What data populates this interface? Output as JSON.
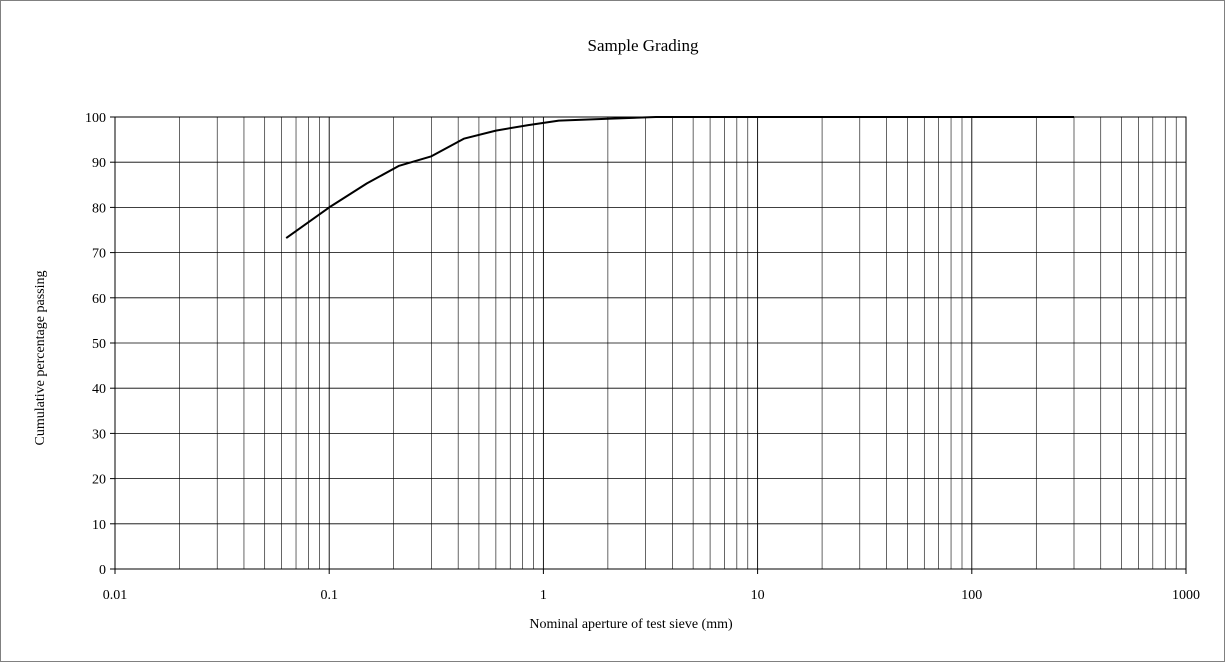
{
  "chart_data": {
    "type": "line",
    "title": "Sample Grading",
    "xlabel": "Nominal aperture of test sieve (mm)",
    "ylabel": "Cumulative percentage passing",
    "xscale": "log",
    "xlim": [
      0.01,
      1000
    ],
    "ylim": [
      0,
      100
    ],
    "x_ticks": [
      "0.01",
      "0.1",
      "1",
      "10",
      "100",
      "1000"
    ],
    "y_ticks": [
      "0",
      "10",
      "20",
      "30",
      "40",
      "50",
      "60",
      "70",
      "80",
      "90",
      "100"
    ],
    "grid": true,
    "legend": "none",
    "series": [
      {
        "x": [
          0.063,
          0.1,
          0.15,
          0.212,
          0.3,
          0.425,
          0.6,
          0.85,
          1.18,
          2,
          3.35,
          5,
          10,
          20,
          50,
          100,
          300
        ],
        "y": [
          73.2,
          80,
          85.3,
          89.2,
          91.3,
          95.2,
          97,
          98.2,
          99.2,
          99.6,
          100,
          100,
          100,
          100,
          100,
          100,
          100
        ]
      }
    ],
    "colors": {
      "line": "#000000",
      "grid": "#000000",
      "background": "#ffffff"
    }
  }
}
